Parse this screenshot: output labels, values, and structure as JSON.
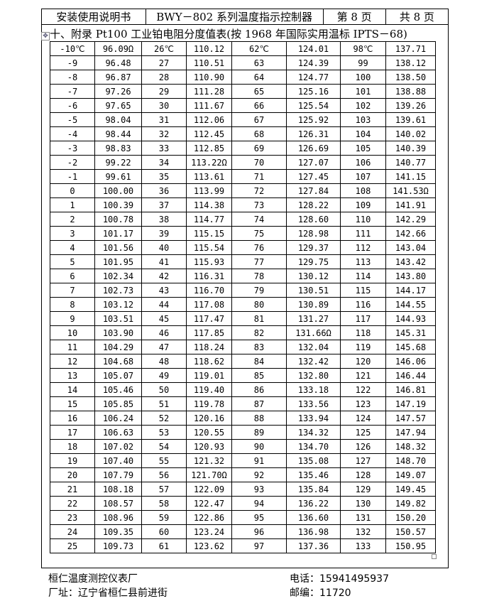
{
  "header": {
    "doc": "安装使用说明书",
    "product": "BWY－802 系列温度指示控制器",
    "page": "第 8 页",
    "total": "共 8 页"
  },
  "title": "十、附录 Pt100 工业铂电阻分度值表(按 1968 年国际实用温标 IPTS－68)",
  "table_rows": [
    [
      "-10℃",
      "96.09Ω",
      "26℃",
      "110.12",
      "62℃",
      "124.01",
      "98℃",
      "137.71"
    ],
    [
      "-9",
      "96.48",
      "27",
      "110.51",
      "63",
      "124.39",
      "99",
      "138.12"
    ],
    [
      "-8",
      "96.87",
      "28",
      "110.90",
      "64",
      "124.77",
      "100",
      "138.50"
    ],
    [
      "-7",
      "97.26",
      "29",
      "111.28",
      "65",
      "125.16",
      "101",
      "138.88"
    ],
    [
      "-6",
      "97.65",
      "30",
      "111.67",
      "66",
      "125.54",
      "102",
      "139.26"
    ],
    [
      "-5",
      "98.04",
      "31",
      "112.06",
      "67",
      "125.92",
      "103",
      "139.61"
    ],
    [
      "-4",
      "98.44",
      "32",
      "112.45",
      "68",
      "126.31",
      "104",
      "140.02"
    ],
    [
      "-3",
      "98.83",
      "33",
      "112.85",
      "69",
      "126.69",
      "105",
      "140.39"
    ],
    [
      "-2",
      "99.22",
      "34",
      "113.22Ω",
      "70",
      "127.07",
      "106",
      "140.77"
    ],
    [
      "-1",
      "99.61",
      "35",
      "113.61",
      "71",
      "127.45",
      "107",
      "141.15"
    ],
    [
      "0",
      "100.00",
      "36",
      "113.99",
      "72",
      "127.84",
      "108",
      "141.53Ω"
    ],
    [
      "1",
      "100.39",
      "37",
      "114.38",
      "73",
      "128.22",
      "109",
      "141.91"
    ],
    [
      "2",
      "100.78",
      "38",
      "114.77",
      "74",
      "128.60",
      "110",
      "142.29"
    ],
    [
      "3",
      "101.17",
      "39",
      "115.15",
      "75",
      "128.98",
      "111",
      "142.66"
    ],
    [
      "4",
      "101.56",
      "40",
      "115.54",
      "76",
      "129.37",
      "112",
      "143.04"
    ],
    [
      "5",
      "101.95",
      "41",
      "115.93",
      "77",
      "129.75",
      "113",
      "143.42"
    ],
    [
      "6",
      "102.34",
      "42",
      "116.31",
      "78",
      "130.12",
      "114",
      "143.80"
    ],
    [
      "7",
      "102.73",
      "43",
      "116.70",
      "79",
      "130.51",
      "115",
      "144.17"
    ],
    [
      "8",
      "103.12",
      "44",
      "117.08",
      "80",
      "130.89",
      "116",
      "144.55"
    ],
    [
      "9",
      "103.51",
      "45",
      "117.47",
      "81",
      "131.27",
      "117",
      "144.93"
    ],
    [
      "10",
      "103.90",
      "46",
      "117.85",
      "82",
      "131.66Ω",
      "118",
      "145.31"
    ],
    [
      "11",
      "104.29",
      "47",
      "118.24",
      "83",
      "132.04",
      "119",
      "145.68"
    ],
    [
      "12",
      "104.68",
      "48",
      "118.62",
      "84",
      "132.42",
      "120",
      "146.06"
    ],
    [
      "13",
      "105.07",
      "49",
      "119.01",
      "85",
      "132.80",
      "121",
      "146.44"
    ],
    [
      "14",
      "105.46",
      "50",
      "119.40",
      "86",
      "133.18",
      "122",
      "146.81"
    ],
    [
      "15",
      "105.85",
      "51",
      "119.78",
      "87",
      "133.56",
      "123",
      "147.19"
    ],
    [
      "16",
      "106.24",
      "52",
      "120.16",
      "88",
      "133.94",
      "124",
      "147.57"
    ],
    [
      "17",
      "106.63",
      "53",
      "120.55",
      "89",
      "134.32",
      "125",
      "147.94"
    ],
    [
      "18",
      "107.02",
      "54",
      "120.93",
      "90",
      "134.70",
      "126",
      "148.32"
    ],
    [
      "19",
      "107.40",
      "55",
      "121.32",
      "91",
      "135.08",
      "127",
      "148.70"
    ],
    [
      "20",
      "107.79",
      "56",
      "121.70Ω",
      "92",
      "135.46",
      "128",
      "149.07"
    ],
    [
      "21",
      "108.18",
      "57",
      "122.09",
      "93",
      "135.84",
      "129",
      "149.45"
    ],
    [
      "22",
      "108.57",
      "58",
      "122.47",
      "94",
      "136.22",
      "130",
      "149.82"
    ],
    [
      "23",
      "108.96",
      "59",
      "122.86",
      "95",
      "136.60",
      "131",
      "150.20"
    ],
    [
      "24",
      "109.35",
      "60",
      "123.24",
      "96",
      "136.98",
      "132",
      "150.57"
    ],
    [
      "25",
      "109.73",
      "61",
      "123.62",
      "97",
      "137.36",
      "133",
      "150.95"
    ]
  ],
  "footer": {
    "company": "桓仁温度测控仪表厂",
    "phone": "电话：15941495937",
    "address": "厂址：辽宁省桓仁县前进街",
    "postcode": "邮编：11720"
  },
  "icons": {
    "table_handle": "move-icon"
  }
}
